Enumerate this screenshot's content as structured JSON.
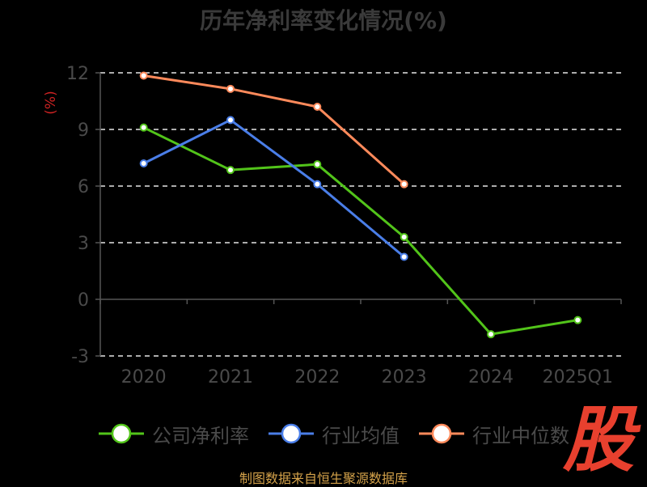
{
  "chart_data": {
    "type": "line",
    "title": "历年净利率变化情况(%)",
    "ylabel": "(%)",
    "categories": [
      "2020",
      "2021",
      "2022",
      "2023",
      "2024",
      "2025Q1"
    ],
    "yticks": [
      12,
      9,
      6,
      3,
      0,
      -3
    ],
    "ylim": [
      -3,
      12
    ],
    "grid": true,
    "legend_position": "bottom",
    "series": [
      {
        "name": "公司净利率",
        "color": "#52c41a",
        "values": [
          9.1,
          6.85,
          7.15,
          3.3,
          -1.85,
          -1.1
        ]
      },
      {
        "name": "行业均值",
        "color": "#4a7ee8",
        "values": [
          7.2,
          9.5,
          6.1,
          2.25,
          null,
          null
        ]
      },
      {
        "name": "行业中位数",
        "color": "#ff8a5b",
        "values": [
          11.85,
          11.15,
          10.2,
          6.1,
          null,
          null
        ]
      }
    ]
  },
  "logo_text": "股",
  "source": "制图数据来自恒生聚源数据库"
}
